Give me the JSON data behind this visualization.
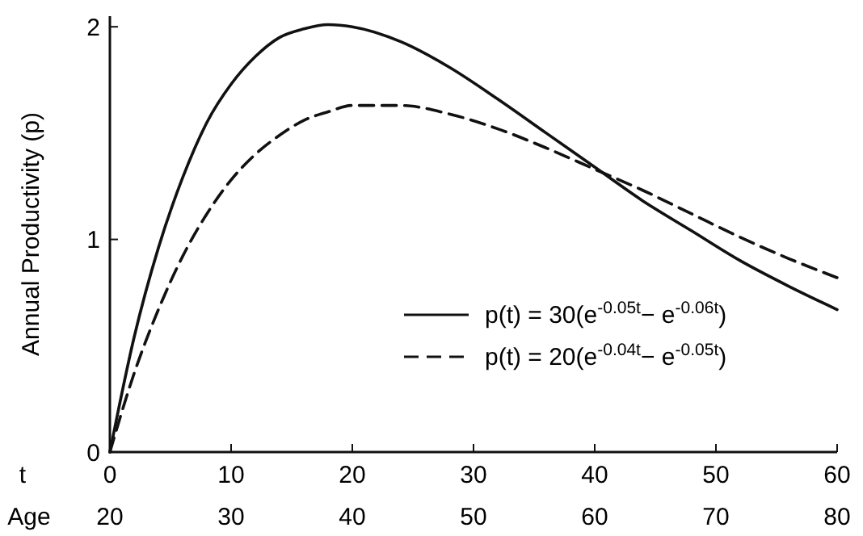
{
  "chart_data": {
    "type": "line",
    "xlabel": "t",
    "ylabel": "Annual Productivity (p)",
    "x2label": "Age",
    "x": [
      0,
      2,
      4,
      6,
      8,
      10,
      12,
      14,
      16,
      18,
      20,
      24,
      28,
      32,
      36,
      40,
      44,
      48,
      52,
      56,
      60
    ],
    "series": [
      {
        "name": "p(t) = 30(e$^{-0.05t}$− e$^{-0.06t}$)",
        "color": "#111111",
        "line_style": "solid",
        "values": [
          0,
          0.54,
          0.96,
          1.29,
          1.55,
          1.73,
          1.86,
          1.95,
          1.99,
          2.01,
          2.0,
          1.93,
          1.81,
          1.66,
          1.5,
          1.34,
          1.18,
          1.04,
          0.9,
          0.78,
          0.67
        ]
      },
      {
        "name": "p(t) = 20(e$^{-0.04t}$− e$^{-0.05t}$)",
        "color": "#111111",
        "line_style": "dashed",
        "values": [
          0,
          0.37,
          0.67,
          0.92,
          1.12,
          1.28,
          1.4,
          1.49,
          1.56,
          1.6,
          1.63,
          1.63,
          1.59,
          1.52,
          1.43,
          1.33,
          1.23,
          1.12,
          1.01,
          0.91,
          0.82
        ]
      }
    ],
    "xlim": [
      0,
      60
    ],
    "xticks": [
      0,
      10,
      20,
      30,
      40,
      50,
      60
    ],
    "x2lim": [
      20,
      80
    ],
    "x2ticks": [
      20,
      30,
      40,
      50,
      60,
      70,
      80
    ],
    "ylim": [
      0,
      2.05
    ],
    "yticks": [
      0,
      1,
      2
    ],
    "legend": "right",
    "marker": "none",
    "grid": false
  }
}
